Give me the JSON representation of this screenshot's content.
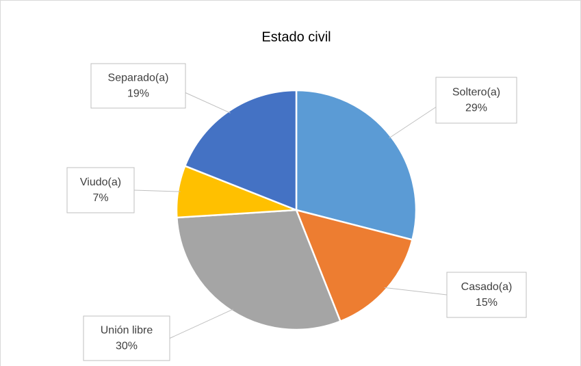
{
  "chart_data": {
    "type": "pie",
    "title": "Estado civil",
    "categories": [
      "Soltero(a)",
      "Casado(a)",
      "Unión libre",
      "Viudo(a)",
      "Separado(a)"
    ],
    "values": [
      29,
      15,
      30,
      7,
      19
    ],
    "value_labels": [
      "29%",
      "15%",
      "30%",
      "7%",
      "19%"
    ],
    "colors": [
      "#5b9bd5",
      "#ed7d31",
      "#a5a5a5",
      "#ffc000",
      "#4472c4"
    ]
  }
}
